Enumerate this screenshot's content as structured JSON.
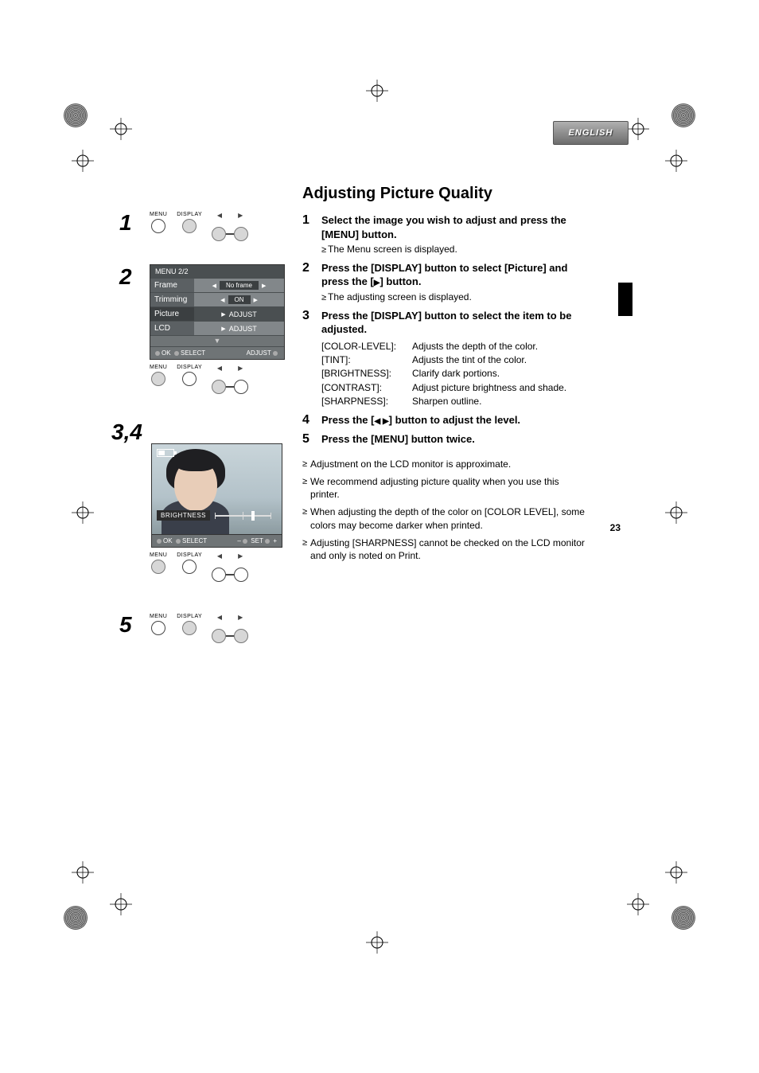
{
  "language_tab": "ENGLISH",
  "section_title": "Adjusting Picture Quality",
  "page_number": "23",
  "left": {
    "steps": {
      "s1": "1",
      "s2": "2",
      "s34": "3,4",
      "s5": "5"
    },
    "button_labels": {
      "menu": "MENU",
      "display": "DISPLAY"
    },
    "menu_panel": {
      "header": "MENU  2/2",
      "rows": [
        {
          "label": "Frame",
          "value": "No frame",
          "arrows": "both"
        },
        {
          "label": "Trimming",
          "value": "ON",
          "arrows": "both"
        },
        {
          "label": "Picture",
          "value": "ADJUST",
          "arrows": "right",
          "selected": true
        },
        {
          "label": "LCD",
          "value": "ADJUST",
          "arrows": "right"
        }
      ],
      "footer_left": "OK",
      "footer_mid": "SELECT",
      "footer_right": "ADJUST"
    },
    "photo": {
      "overlay_label": "BRIGHTNESS",
      "footer_ok": "OK",
      "footer_select": "SELECT",
      "footer_set": "SET",
      "footer_minus": "–",
      "footer_plus": "+"
    }
  },
  "right": {
    "steps": [
      {
        "n": "1",
        "bold": "Select the image you wish to adjust and press the [MENU] button.",
        "sub": "The Menu screen is displayed."
      },
      {
        "n": "2",
        "bold_pre": "Press the [DISPLAY] button to select [Picture] and press the [",
        "bold_post": "] button.",
        "tri": "▶",
        "sub": "The adjusting screen is displayed."
      },
      {
        "n": "3",
        "bold": "Press the [DISPLAY] button to select the item to be adjusted.",
        "defs": [
          {
            "k": "[COLOR-LEVEL]:",
            "v": "Adjusts the depth of the color."
          },
          {
            "k": "[TINT]:",
            "v": "Adjusts the tint of the color."
          },
          {
            "k": "[BRIGHTNESS]:",
            "v": "Clarify dark portions."
          },
          {
            "k": "[CONTRAST]:",
            "v": "Adjust picture brightness and shade."
          },
          {
            "k": "[SHARPNESS]:",
            "v": "Sharpen outline."
          }
        ]
      },
      {
        "n": "4",
        "bold_pre": "Press the [",
        "bold_post": "] button to adjust the level.",
        "tri": "◀ ▶"
      },
      {
        "n": "5",
        "bold": "Press the [MENU] button twice."
      }
    ],
    "notes": [
      "Adjustment on the LCD monitor is approximate.",
      "We recommend adjusting picture quality when you use this printer.",
      "When adjusting the depth of the color on [COLOR LEVEL], some colors may become darker when printed.",
      "Adjusting [SHARPNESS] cannot be checked on the LCD monitor and only is noted on Print."
    ]
  }
}
